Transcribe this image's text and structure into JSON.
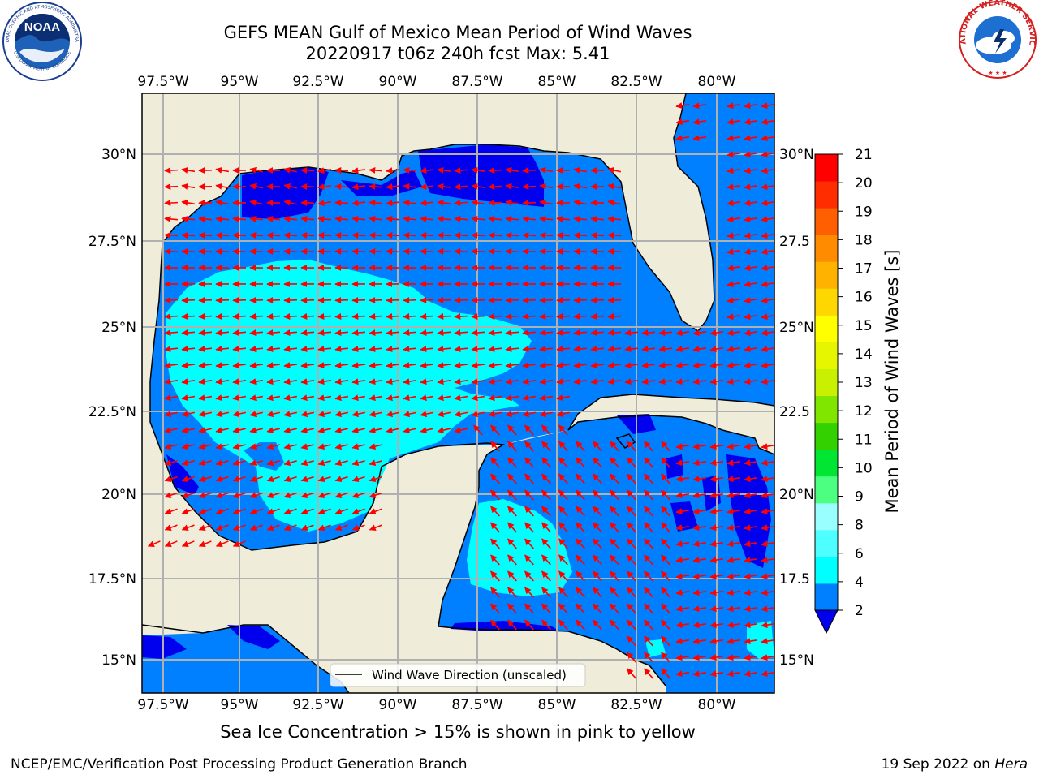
{
  "header": {
    "title_line1": "GEFS MEAN Gulf of Mexico Mean Period of Wind Waves",
    "title_line2": "20220917 t06z 240h fcst   Max: 5.41"
  },
  "logos": {
    "left": {
      "name": "noaa-logo",
      "text": "NOAA",
      "ring_text": "NATIONAL OCEANIC AND ATMOSPHERIC ADMINISTRATION",
      "bottom_text": "U.S. DEPARTMENT OF COMMERCE"
    },
    "right": {
      "name": "nws-logo",
      "ring_text": "NATIONAL WEATHER SERVICE"
    }
  },
  "map": {
    "longitude_ticks": [
      "97.5°W",
      "95°W",
      "92.5°W",
      "90°W",
      "87.5°W",
      "85°W",
      "82.5°W",
      "80°W"
    ],
    "latitude_ticks_left": [
      "30°N",
      "27.5°N",
      "25°N",
      "22.5°N",
      "20°N",
      "17.5°N",
      "15°N"
    ],
    "latitude_ticks_right": [
      "30°N",
      "27.5",
      "25°N",
      "22.5",
      "20°N",
      "17.5",
      "15°N"
    ],
    "legend_label": "Wind Wave Direction (unscaled)",
    "colors": {
      "land": "#efedda",
      "band_2_4": "#0080ff",
      "band_below_2": "#0000ee",
      "band_4_6": "#00ffff",
      "arrow": "#ff0000"
    }
  },
  "colorbar": {
    "label": "Mean Period of Wind Waves [s]",
    "tick_labels": [
      "2",
      "4",
      "6",
      "8",
      "9",
      "10",
      "11",
      "12",
      "13",
      "14",
      "15",
      "16",
      "17",
      "18",
      "19",
      "20",
      "21"
    ],
    "colors": [
      "#0080ff",
      "#00ffff",
      "#4dffff",
      "#99ffff",
      "#4dff80",
      "#00e633",
      "#33d100",
      "#80e600",
      "#c8f000",
      "#e6f500",
      "#ffff00",
      "#ffd700",
      "#ffb300",
      "#ff8c00",
      "#ff5f00",
      "#ff2d00",
      "#ff0000"
    ],
    "extend_color": "#0000ee"
  },
  "footer": {
    "ice_note": "Sea Ice Concentration > 15% is shown in pink to yellow",
    "credit": "NCEP/EMC/Verification Post Processing Product Generation Branch",
    "date_prefix": "19 Sep 2022 on",
    "machine": "Hera"
  }
}
